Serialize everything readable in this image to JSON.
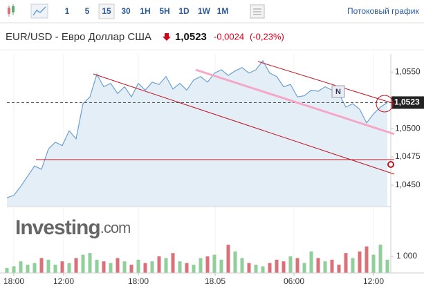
{
  "toolbar": {
    "intervals": [
      "1",
      "5",
      "15",
      "30",
      "1H",
      "5H",
      "1D",
      "1W",
      "1M"
    ],
    "active": 2,
    "stream": "Потоковый график"
  },
  "header": {
    "title": "EUR/USD - Евро Доллар США",
    "change": "-0,0024",
    "change_pct": "(-0,23%)"
  },
  "watermark": [
    "Investing",
    ".com"
  ],
  "chart_data": [
    {
      "type": "area",
      "color": "#6a9fd0",
      "fill": "#e4eef7",
      "x": [
        -2,
        0,
        2,
        4,
        6,
        8,
        10,
        12,
        14,
        16,
        18,
        20,
        22,
        24,
        26,
        28,
        30,
        32,
        34,
        36,
        38,
        40,
        42,
        44,
        46,
        48,
        50,
        52,
        54,
        56,
        58,
        60,
        62,
        64,
        66,
        68,
        70,
        72,
        74,
        76,
        78,
        80,
        82,
        84,
        86,
        88,
        90,
        92,
        94,
        96,
        98,
        100,
        102,
        104,
        106,
        108
      ],
      "values": [
        1.0439,
        1.0441,
        1.0449,
        1.0458,
        1.0467,
        1.0464,
        1.0482,
        1.0488,
        1.0485,
        1.0498,
        1.0491,
        1.0522,
        1.0528,
        1.0548,
        1.0537,
        1.054,
        1.0531,
        1.0537,
        1.0528,
        1.054,
        1.0534,
        1.0541,
        1.0539,
        1.0546,
        1.0535,
        1.054,
        1.0534,
        1.0543,
        1.0546,
        1.0541,
        1.0549,
        1.0552,
        1.0547,
        1.0551,
        1.0554,
        1.0549,
        1.0552,
        1.056,
        1.0549,
        1.0546,
        1.0537,
        1.0539,
        1.0528,
        1.0529,
        1.0534,
        1.0533,
        1.0537,
        1.0534,
        1.0531,
        1.0519,
        1.0522,
        1.0517,
        1.0505,
        1.0513,
        1.0519,
        1.0523
      ],
      "xlim": [
        -2,
        109
      ],
      "ylim": [
        1.04317,
        1.0566
      ],
      "yticks": [
        {
          "value": 1.045,
          "label": "1,0450"
        },
        {
          "value": 1.0475,
          "label": "1,0475"
        },
        {
          "value": 1.05,
          "label": "1,0500"
        },
        {
          "value": 1.055,
          "label": "1,0550"
        }
      ],
      "last": {
        "value": 1.0523,
        "label": "1,0523"
      }
    },
    {
      "type": "bar",
      "up_color": "#8fcf99",
      "down_color": "#d9707a",
      "x": [
        -2,
        0,
        2,
        4,
        6,
        8,
        10,
        12,
        14,
        16,
        18,
        20,
        22,
        24,
        26,
        28,
        30,
        32,
        34,
        36,
        38,
        40,
        42,
        44,
        46,
        48,
        50,
        52,
        54,
        56,
        58,
        60,
        62,
        64,
        66,
        68,
        70,
        72,
        74,
        76,
        78,
        80,
        82,
        84,
        86,
        88,
        90,
        92,
        94,
        96,
        98,
        100,
        102,
        104,
        106,
        108
      ],
      "values": [
        300,
        400,
        700,
        500,
        600,
        900,
        800,
        500,
        700,
        600,
        900,
        1100,
        1200,
        800,
        700,
        600,
        900,
        700,
        500,
        800,
        600,
        700,
        1000,
        900,
        1200,
        700,
        600,
        500,
        900,
        1000,
        1100,
        800,
        1700,
        1300,
        900,
        600,
        500,
        400,
        600,
        800,
        700,
        1000,
        900,
        600,
        1300,
        900,
        700,
        800,
        500,
        1200,
        900,
        1300,
        1600,
        1100,
        1700,
        800
      ],
      "xlim": [
        -2,
        109
      ],
      "ylim": [
        0,
        3958
      ],
      "yticks": [
        {
          "value": 1000,
          "label": "1 000"
        }
      ],
      "xticks": [
        {
          "value": 0,
          "label": "18:00"
        },
        {
          "value": 14.4,
          "label": "12:00"
        },
        {
          "value": 36,
          "label": "18:00"
        },
        {
          "value": 58.2,
          "label": "18.05"
        },
        {
          "value": 81,
          "label": "06:00"
        },
        {
          "value": 104,
          "label": "12:00"
        }
      ]
    }
  ]
}
